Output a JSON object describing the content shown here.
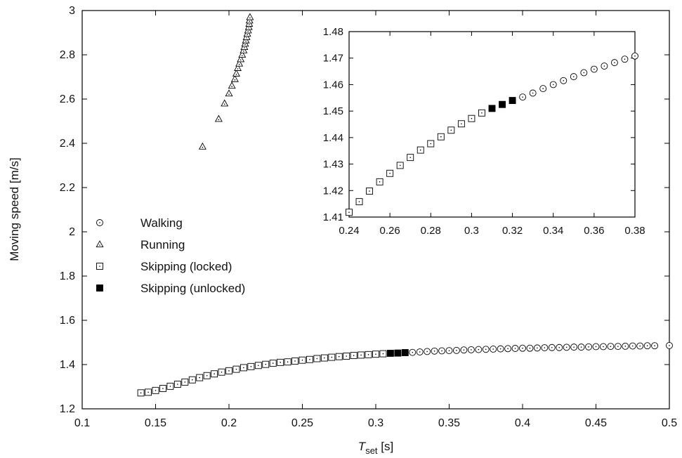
{
  "chart_data": [
    {
      "type": "scatter",
      "panel": "main",
      "title": "",
      "xlabel": "T_set [s]",
      "xlabel_parts": {
        "main": "T",
        "sub": "set",
        "unit": " [s]"
      },
      "ylabel": "Moving speed [m/s]",
      "xlim": [
        0.1,
        0.5
      ],
      "ylim": [
        1.2,
        3.0
      ],
      "xticks": [
        "0.1",
        "0.15",
        "0.2",
        "0.25",
        "0.3",
        "0.35",
        "0.4",
        "0.45",
        "0.5"
      ],
      "yticks": [
        "1.2",
        "1.4",
        "1.6",
        "1.8",
        "2",
        "2.2",
        "2.4",
        "2.6",
        "2.8",
        "3"
      ],
      "grid": false,
      "legend_position": "left",
      "series": [
        {
          "name": "Walking",
          "marker": "circle-dot",
          "x": [
            0.325,
            0.33,
            0.335,
            0.34,
            0.345,
            0.35,
            0.355,
            0.36,
            0.365,
            0.37,
            0.375,
            0.38,
            0.385,
            0.39,
            0.395,
            0.4,
            0.405,
            0.41,
            0.415,
            0.42,
            0.425,
            0.43,
            0.435,
            0.44,
            0.445,
            0.45,
            0.455,
            0.46,
            0.465,
            0.47,
            0.475,
            0.48,
            0.485,
            0.49,
            0.5
          ],
          "y": [
            1.455,
            1.457,
            1.459,
            1.461,
            1.462,
            1.463,
            1.464,
            1.466,
            1.467,
            1.468,
            1.469,
            1.47,
            1.471,
            1.472,
            1.473,
            1.474,
            1.474,
            1.475,
            1.476,
            1.477,
            1.477,
            1.478,
            1.479,
            1.479,
            1.48,
            1.481,
            1.481,
            1.482,
            1.482,
            1.483,
            1.484,
            1.484,
            1.485,
            1.485,
            1.486
          ]
        },
        {
          "name": "Running",
          "marker": "triangle-dot",
          "x": [
            0.182,
            0.193,
            0.197,
            0.2,
            0.202,
            0.204,
            0.205,
            0.206,
            0.207,
            0.208,
            0.209,
            0.21,
            0.2105,
            0.211,
            0.2115,
            0.212,
            0.2125,
            0.213,
            0.2135,
            0.2138,
            0.214,
            0.2143
          ],
          "y": [
            2.385,
            2.51,
            2.58,
            2.625,
            2.66,
            2.69,
            2.715,
            2.74,
            2.76,
            2.78,
            2.8,
            2.82,
            2.835,
            2.85,
            2.865,
            2.88,
            2.895,
            2.91,
            2.925,
            2.94,
            2.955,
            2.97
          ]
        },
        {
          "name": "Skipping (locked)",
          "marker": "square-dot",
          "x": [
            0.14,
            0.145,
            0.15,
            0.155,
            0.16,
            0.165,
            0.17,
            0.175,
            0.18,
            0.185,
            0.19,
            0.195,
            0.2,
            0.205,
            0.21,
            0.215,
            0.22,
            0.225,
            0.23,
            0.235,
            0.24,
            0.245,
            0.25,
            0.255,
            0.26,
            0.265,
            0.27,
            0.275,
            0.28,
            0.285,
            0.29,
            0.295,
            0.3,
            0.305
          ],
          "y": [
            1.272,
            1.275,
            1.283,
            1.292,
            1.302,
            1.311,
            1.321,
            1.331,
            1.341,
            1.35,
            1.358,
            1.366,
            1.372,
            1.379,
            1.386,
            1.391,
            1.396,
            1.401,
            1.406,
            1.41,
            1.412,
            1.416,
            1.42,
            1.423,
            1.427,
            1.43,
            1.433,
            1.436,
            1.438,
            1.441,
            1.443,
            1.445,
            1.447,
            1.449
          ]
        },
        {
          "name": "Skipping (unlocked)",
          "marker": "filled-square",
          "x": [
            0.31,
            0.315,
            0.32
          ],
          "y": [
            1.451,
            1.452,
            1.454
          ]
        }
      ]
    },
    {
      "type": "scatter",
      "panel": "inset",
      "title": "",
      "xlim": [
        0.24,
        0.38
      ],
      "ylim": [
        1.41,
        1.48
      ],
      "xticks": [
        "0.24",
        "0.26",
        "0.28",
        "0.3",
        "0.32",
        "0.34",
        "0.36",
        "0.38"
      ],
      "yticks": [
        "1.41",
        "1.42",
        "1.43",
        "1.44",
        "1.45",
        "1.46",
        "1.47",
        "1.48"
      ],
      "grid": false,
      "series": [
        {
          "marker": "circle-dot",
          "x": [
            0.325,
            0.33,
            0.335,
            0.34,
            0.345,
            0.35,
            0.355,
            0.36,
            0.365,
            0.37,
            0.375,
            0.38
          ],
          "y": [
            1.4553,
            1.4568,
            1.4585,
            1.46,
            1.4615,
            1.463,
            1.4645,
            1.4658,
            1.467,
            1.4683,
            1.4696,
            1.4708
          ]
        },
        {
          "marker": "square-dot",
          "x": [
            0.24,
            0.245,
            0.25,
            0.255,
            0.26,
            0.265,
            0.27,
            0.275,
            0.28,
            0.285,
            0.29,
            0.295,
            0.3,
            0.305
          ],
          "y": [
            1.4118,
            1.4158,
            1.4198,
            1.4233,
            1.4265,
            1.4295,
            1.4325,
            1.4353,
            1.4377,
            1.4403,
            1.4428,
            1.4452,
            1.4472,
            1.4493
          ]
        },
        {
          "marker": "filled-square",
          "x": [
            0.31,
            0.315,
            0.32
          ],
          "y": [
            1.451,
            1.4525,
            1.454
          ]
        }
      ]
    }
  ]
}
